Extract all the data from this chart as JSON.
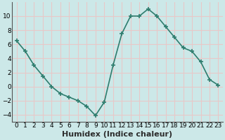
{
  "x": [
    0,
    1,
    2,
    3,
    4,
    5,
    6,
    7,
    8,
    9,
    10,
    11,
    12,
    13,
    14,
    15,
    16,
    17,
    18,
    19,
    20,
    21,
    22,
    23
  ],
  "y": [
    6.5,
    5.0,
    3.0,
    1.5,
    0.0,
    -1.0,
    -1.5,
    -2.0,
    -2.8,
    -4.1,
    -2.2,
    3.0,
    7.5,
    10.0,
    10.0,
    11.0,
    10.0,
    8.5,
    7.0,
    5.5,
    5.0,
    3.5,
    1.0,
    0.2
  ],
  "line_color": "#2e7d6e",
  "marker": "+",
  "marker_size": 4,
  "marker_linewidth": 1.2,
  "bg_color": "#cce8e8",
  "grid_color": "#e8c8c8",
  "xlabel": "Humidex (Indice chaleur)",
  "xlabel_fontsize": 8,
  "ylim": [
    -5,
    12
  ],
  "xlim": [
    -0.5,
    23.5
  ],
  "yticks": [
    -4,
    -2,
    0,
    2,
    4,
    6,
    8,
    10
  ],
  "xtick_labels": [
    "0",
    "1",
    "2",
    "3",
    "4",
    "5",
    "6",
    "7",
    "8",
    "9",
    "10",
    "11",
    "12",
    "13",
    "14",
    "15",
    "16",
    "17",
    "18",
    "19",
    "20",
    "21",
    "22",
    "23"
  ],
  "tick_fontsize": 6.5,
  "line_width": 1.2,
  "title_color": "#2d2d2d"
}
